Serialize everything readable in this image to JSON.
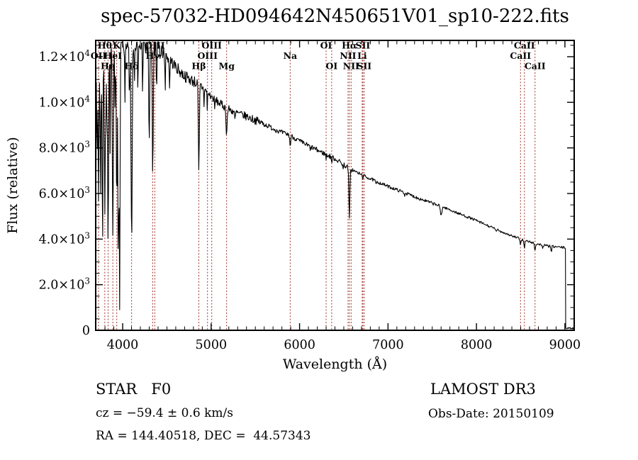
{
  "title": "spec-57032-HD094642N450651V01_sp10-222.fits",
  "footer": {
    "class_line": "STAR   F0",
    "cz_line": "cz = −59.4 ± 0.6 km/s",
    "radec_line": "RA = 144.40518, DEC =  44.57343",
    "survey": "LAMOST DR3",
    "obsdate_line": "Obs-Date: 20150109"
  },
  "chart_data": {
    "type": "line",
    "title": "spec-57032-HD094642N450651V01_sp10-222.fits",
    "xlabel": "Wavelength (Å)",
    "ylabel": "Flux (relative)",
    "xlim": [
      3695,
      9105
    ],
    "ylim": [
      0,
      12715
    ],
    "grid": false,
    "line_color": "#000000",
    "marker_color": "#9e342b",
    "x_ticks": {
      "major": [
        4000,
        5000,
        6000,
        7000,
        8000,
        9000
      ],
      "labels": [
        "4000",
        "5000",
        "6000",
        "7000",
        "8000",
        "9000"
      ],
      "minor_step": 100
    },
    "y_ticks": {
      "major": [
        0,
        2000,
        4000,
        6000,
        8000,
        10000,
        12000
      ],
      "labels": [
        "0",
        "2.0×10^3",
        "4.0×10^3",
        "6.0×10^3",
        "8.0×10^3",
        "1.0×10^4",
        "1.2×10^4"
      ],
      "minor_step": 500
    },
    "spectral_lines": [
      {
        "label": "OII",
        "wavelength": 3727,
        "row": 2
      },
      {
        "label": "Hθ",
        "wavelength": 3798,
        "row": 1
      },
      {
        "label": "Hη",
        "wavelength": 3835,
        "row": 3
      },
      {
        "label": "HeI",
        "wavelength": 3889,
        "row": 2
      },
      {
        "label": "K",
        "wavelength": 3933,
        "row": 1
      },
      {
        "label": "Hδ",
        "wavelength": 4101,
        "row": 3
      },
      {
        "label": "Hγ",
        "wavelength": 4340,
        "row": 2
      },
      {
        "label": "OIII",
        "wavelength": 4363,
        "row": 1
      },
      {
        "label": "Hβ",
        "wavelength": 4861,
        "row": 3
      },
      {
        "label": "OIII",
        "wavelength": 4959,
        "row": 2
      },
      {
        "label": "OIII",
        "wavelength": 5007,
        "row": 1
      },
      {
        "label": "Mg",
        "wavelength": 5175,
        "row": 3
      },
      {
        "label": "Na",
        "wavelength": 5894,
        "row": 2
      },
      {
        "label": "OI",
        "wavelength": 6300,
        "row": 1
      },
      {
        "label": "OI",
        "wavelength": 6363,
        "row": 3
      },
      {
        "label": "NII",
        "wavelength": 6548,
        "row": 2
      },
      {
        "label": "Hα",
        "wavelength": 6563,
        "row": 1
      },
      {
        "label": "NII",
        "wavelength": 6583,
        "row": 3
      },
      {
        "label": "Li",
        "wavelength": 6708,
        "row": 2
      },
      {
        "label": "SII",
        "wavelength": 6716,
        "row": 1
      },
      {
        "label": "SII",
        "wavelength": 6731,
        "row": 3
      },
      {
        "label": "CaII",
        "wavelength": 8498,
        "row": 2
      },
      {
        "label": "CaII",
        "wavelength": 8542,
        "row": 1
      },
      {
        "label": "CaII",
        "wavelength": 8662,
        "row": 3
      }
    ],
    "continuum": [
      [
        3695,
        9000
      ],
      [
        3710,
        10800
      ],
      [
        3740,
        11200
      ],
      [
        3780,
        11500
      ],
      [
        3830,
        11900
      ],
      [
        3880,
        12100
      ],
      [
        3930,
        12250
      ],
      [
        3990,
        12300
      ],
      [
        4060,
        12380
      ],
      [
        4150,
        12450
      ],
      [
        4230,
        12520
      ],
      [
        4300,
        12480
      ],
      [
        4360,
        12400
      ],
      [
        4420,
        12280
      ],
      [
        4480,
        12100
      ],
      [
        4540,
        11850
      ],
      [
        4600,
        11550
      ],
      [
        4660,
        11300
      ],
      [
        4720,
        11100
      ],
      [
        4790,
        10950
      ],
      [
        4861,
        10800
      ],
      [
        4930,
        10550
      ],
      [
        5000,
        10250
      ],
      [
        5080,
        10000
      ],
      [
        5175,
        9750
      ],
      [
        5280,
        9550
      ],
      [
        5400,
        9380
      ],
      [
        5520,
        9180
      ],
      [
        5650,
        8950
      ],
      [
        5780,
        8700
      ],
      [
        5894,
        8550
      ],
      [
        6020,
        8250
      ],
      [
        6150,
        8000
      ],
      [
        6280,
        7750
      ],
      [
        6420,
        7480
      ],
      [
        6563,
        7100
      ],
      [
        6700,
        6820
      ],
      [
        6850,
        6560
      ],
      [
        7000,
        6310
      ],
      [
        7160,
        6080
      ],
      [
        7320,
        5830
      ],
      [
        7480,
        5600
      ],
      [
        7640,
        5380
      ],
      [
        7800,
        5120
      ],
      [
        7960,
        4880
      ],
      [
        8120,
        4600
      ],
      [
        8280,
        4330
      ],
      [
        8440,
        4080
      ],
      [
        8560,
        3920
      ],
      [
        8680,
        3790
      ],
      [
        8800,
        3700
      ],
      [
        8900,
        3660
      ],
      [
        9008,
        3620
      ]
    ],
    "absorption_lines": [
      [
        3712,
        7800,
        5
      ],
      [
        3727,
        5900,
        6
      ],
      [
        3750,
        5500,
        6
      ],
      [
        3771,
        5300,
        6
      ],
      [
        3798,
        4900,
        7
      ],
      [
        3820,
        9500,
        4
      ],
      [
        3835,
        4100,
        8
      ],
      [
        3860,
        9000,
        4
      ],
      [
        3889,
        3600,
        8
      ],
      [
        3914,
        9800,
        4
      ],
      [
        3933,
        4700,
        7
      ],
      [
        3950,
        2500,
        6
      ],
      [
        3965,
        950,
        7
      ],
      [
        4026,
        9800,
        5
      ],
      [
        4077,
        9500,
        4
      ],
      [
        4101,
        3750,
        9
      ],
      [
        4132,
        10500,
        4
      ],
      [
        4172,
        10300,
        4
      ],
      [
        4226,
        10200,
        5
      ],
      [
        4300,
        8300,
        7
      ],
      [
        4340,
        6950,
        8
      ],
      [
        4383,
        10400,
        5
      ],
      [
        4481,
        10500,
        4
      ],
      [
        4530,
        10600,
        5
      ],
      [
        4861,
        6850,
        8
      ],
      [
        4920,
        9900,
        4
      ],
      [
        4957,
        9700,
        4
      ],
      [
        5041,
        9600,
        4
      ],
      [
        5175,
        8650,
        9
      ],
      [
        5270,
        9100,
        5
      ],
      [
        5894,
        8050,
        7
      ],
      [
        6122,
        7800,
        4
      ],
      [
        6300,
        7500,
        4
      ],
      [
        6363,
        7300,
        4
      ],
      [
        6494,
        7000,
        4
      ],
      [
        6563,
        4900,
        8
      ],
      [
        6716,
        6650,
        4
      ],
      [
        6867,
        6350,
        6
      ],
      [
        7186,
        5900,
        5
      ],
      [
        7600,
        5050,
        12
      ],
      [
        8226,
        4300,
        5
      ],
      [
        8498,
        3700,
        6
      ],
      [
        8542,
        3620,
        7
      ],
      [
        8662,
        3480,
        7
      ],
      [
        8750,
        3560,
        5
      ],
      [
        8846,
        3400,
        6
      ]
    ],
    "noise_regions": [
      [
        3695,
        3706,
        2600
      ],
      [
        3706,
        4000,
        550
      ],
      [
        4000,
        4450,
        420
      ],
      [
        4450,
        4900,
        260
      ],
      [
        4900,
        5600,
        180
      ],
      [
        5600,
        6600,
        110
      ],
      [
        6600,
        7600,
        70
      ],
      [
        7600,
        9008,
        55
      ],
      [
        9008,
        9105,
        35
      ]
    ],
    "spike_region": {
      "end": 4430,
      "prob": 0.09,
      "max_depth": 3300
    },
    "cutoff": {
      "wavelength": 9008,
      "floor_flux": 90
    },
    "seed": 7
  }
}
